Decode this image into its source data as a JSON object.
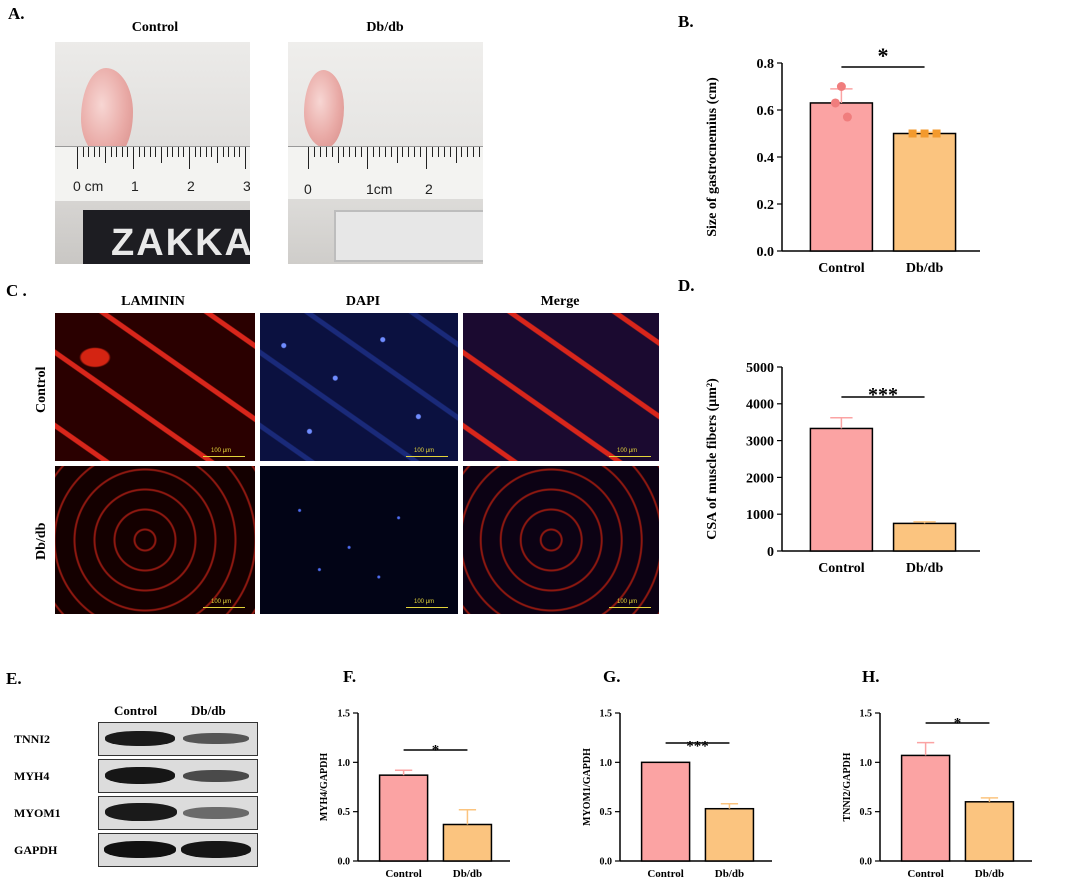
{
  "panels": {
    "A": "A.",
    "B": "B.",
    "C": "C .",
    "D": "D.",
    "E": "E.",
    "F": "F.",
    "G": "G.",
    "H": "H."
  },
  "photos": {
    "left_caption": "Control",
    "right_caption": "Db/db",
    "left_ruler": [
      "0 cm",
      "1",
      "2",
      "3"
    ],
    "right_ruler": [
      "0",
      "1cm",
      "2"
    ],
    "left_box_text": "ZAKKAI"
  },
  "microscopy": {
    "col_headers": [
      "LAMININ",
      "DAPI",
      "Merge"
    ],
    "row_labels": [
      "Control",
      "Db/db"
    ],
    "scale_text": "100 μm"
  },
  "western": {
    "col_headers": [
      "Control",
      "Db/db"
    ],
    "rows": [
      "TNNI2",
      "MYH4",
      "MYOM1",
      "GAPDH"
    ]
  },
  "colors": {
    "control": "#fba3a3",
    "dbdb": "#fbc47f",
    "control_dot": "#f07d7d",
    "dbdb_dot": "#f39a2e"
  },
  "chart_data": [
    {
      "id": "B",
      "type": "bar",
      "categories": [
        "Control",
        "Db/db"
      ],
      "values": [
        0.63,
        0.5
      ],
      "errors": [
        0.06,
        0.005
      ],
      "points": [
        [
          0.7,
          0.63,
          0.57
        ],
        [
          0.5,
          0.5,
          0.5
        ]
      ],
      "ylabel": "Size of gastrocnemius (cm)",
      "ylim": [
        0,
        0.8
      ],
      "yticks": [
        "0.0",
        "0.2",
        "0.4",
        "0.6",
        "0.8"
      ],
      "significance": "*"
    },
    {
      "id": "D",
      "type": "bar",
      "categories": [
        "Control",
        "Db/db"
      ],
      "values": [
        3330,
        750
      ],
      "errors": [
        290,
        40
      ],
      "ylabel": "CSA of muscle fibers (μm²)",
      "ylim": [
        0,
        5000
      ],
      "yticks": [
        "0",
        "1000",
        "2000",
        "3000",
        "4000",
        "5000"
      ],
      "significance": "***"
    },
    {
      "id": "F",
      "type": "bar",
      "categories": [
        "Control",
        "Db/db"
      ],
      "values": [
        0.87,
        0.37
      ],
      "errors": [
        0.05,
        0.15
      ],
      "ylabel": "MYH4/GAPDH",
      "ylim": [
        0,
        1.5
      ],
      "yticks": [
        "0.0",
        "0.5",
        "1.0",
        "1.5"
      ],
      "significance": "*"
    },
    {
      "id": "G",
      "type": "bar",
      "categories": [
        "Control",
        "Db/db"
      ],
      "values": [
        1.0,
        0.53
      ],
      "errors": [
        0,
        0.05
      ],
      "ylabel": "MYOM1/GAPDH",
      "ylim": [
        0,
        1.5
      ],
      "yticks": [
        "0.0",
        "0.5",
        "1.0",
        "1.5"
      ],
      "significance": "***"
    },
    {
      "id": "H",
      "type": "bar",
      "categories": [
        "Control",
        "Db/db"
      ],
      "values": [
        1.07,
        0.6
      ],
      "errors": [
        0.13,
        0.04
      ],
      "ylabel": "TNNI2/GAPDH",
      "ylim": [
        0,
        1.5
      ],
      "yticks": [
        "0.0",
        "0.5",
        "1.0",
        "1.5"
      ],
      "significance": "*"
    }
  ]
}
